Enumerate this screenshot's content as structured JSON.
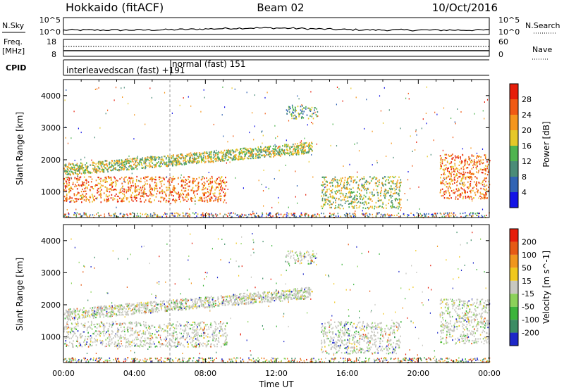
{
  "header": {
    "station": "Hokkaido (fitACF)",
    "beam": "Beam 02",
    "date": "10/Oct/2016"
  },
  "strip_labels": {
    "nsky": "N.Sky",
    "nsearch": "N.Search",
    "freq": "Freq.",
    "freq_unit": "[MHz]",
    "nave": "Nave",
    "cpid": "CPID",
    "nsky_top": "10^5",
    "nsky_bottom": "10^0",
    "freq_top": "18",
    "freq_bottom": "8",
    "nave_top": "60",
    "nave_bottom": "0"
  },
  "cpid_annotations": {
    "left": "interleavedscan (fast) +191",
    "right": "normal (fast) 151"
  },
  "chart_data": [
    {
      "type": "heatmap",
      "title": "",
      "xlabel": "",
      "ylabel": "Slant Range [km]",
      "ylim": [
        200,
        4500
      ],
      "x_ticks": [
        "00:00",
        "04:00",
        "08:00",
        "12:00",
        "16:00",
        "20:00",
        "00:00"
      ],
      "y_ticks": [
        1000,
        2000,
        3000,
        4000
      ],
      "colorbar": {
        "label": "Power [dB]",
        "tick_labels": [
          "4",
          "8",
          "12",
          "16",
          "20",
          "24",
          "28"
        ],
        "colors": [
          "#1414e6",
          "#3264b4",
          "#4b8c78",
          "#50b450",
          "#e6c828",
          "#f5961e",
          "#f05a14",
          "#e61e0a"
        ]
      },
      "echo_regions": [
        {
          "t_start": 0.0,
          "t_end": 9.2,
          "r_start": 700,
          "r_end": 1500,
          "level": "high"
        },
        {
          "t_start": 0.0,
          "t_end": 14.0,
          "r_start": 1500,
          "r_end": 2300,
          "level": "medium"
        },
        {
          "t_start": 14.5,
          "t_end": 19.0,
          "r_start": 500,
          "r_end": 1500,
          "level": "medium"
        },
        {
          "t_start": 21.2,
          "t_end": 24.0,
          "r_start": 800,
          "r_end": 2200,
          "level": "high"
        },
        {
          "t_start": 12.5,
          "t_end": 14.3,
          "r_start": 3300,
          "r_end": 3700,
          "level": "low"
        }
      ]
    },
    {
      "type": "heatmap",
      "title": "",
      "xlabel": "Time UT",
      "ylabel": "Slant Range [km]",
      "ylim": [
        200,
        4500
      ],
      "x_ticks": [
        "00:00",
        "04:00",
        "08:00",
        "12:00",
        "16:00",
        "20:00",
        "00:00"
      ],
      "y_ticks": [
        1000,
        2000,
        3000,
        4000
      ],
      "colorbar": {
        "label": "Velocity [m s^-1]",
        "tick_labels": [
          "200",
          "100",
          "50",
          "15",
          "-15",
          "-50",
          "-100",
          "-200"
        ],
        "colors": [
          "#1e28c8",
          "#3c8c64",
          "#3cb43c",
          "#8cd25a",
          "#c8c8c0",
          "#f0c81e",
          "#f0961e",
          "#e65a14",
          "#e61e0a"
        ]
      }
    }
  ]
}
